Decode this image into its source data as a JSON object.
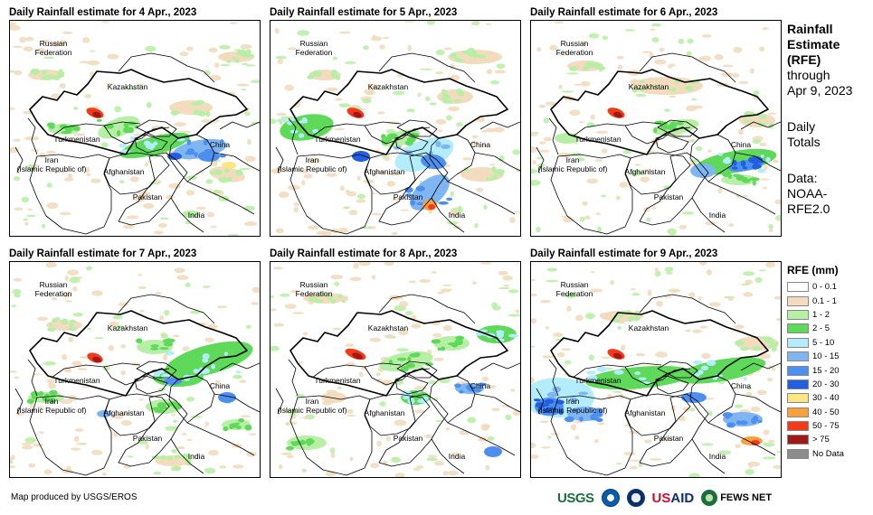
{
  "panels": [
    {
      "title": "Daily Rainfall estimate for 4 Apr., 2023",
      "variant": 0
    },
    {
      "title": "Daily Rainfall estimate for 5 Apr., 2023",
      "variant": 1
    },
    {
      "title": "Daily Rainfall estimate for 6 Apr., 2023",
      "variant": 2
    },
    {
      "title": "Daily Rainfall estimate for 7 Apr., 2023",
      "variant": 3
    },
    {
      "title": "Daily Rainfall estimate for 8 Apr., 2023",
      "variant": 4
    },
    {
      "title": "Daily Rainfall estimate for 9 Apr., 2023",
      "variant": 5
    }
  ],
  "countries": {
    "russia_line1": "Russian",
    "russia_line2": "Federation",
    "kazakhstan": "Kazakhstan",
    "turkmenistan": "Turkmenistan",
    "china": "China",
    "iran_line1": "Iran",
    "iran_line2": "(Islamic Republic of)",
    "afghanistan": "Afghanistan",
    "pakistan": "Pakistan",
    "india": "India"
  },
  "sidebar": {
    "title_line1": "Rainfall",
    "title_line2": "Estimate",
    "title_line3": "(RFE)",
    "through_line1": "through",
    "through_line2": "Apr 9, 2023",
    "totals_line1": "Daily",
    "totals_line2": "Totals",
    "data_line1": "Data:",
    "data_line2": "NOAA-",
    "data_line3": "RFE2.0"
  },
  "legend": {
    "title": "RFE (mm)",
    "items": [
      {
        "label": "0 - 0.1",
        "color": "#ffffff"
      },
      {
        "label": "0.1 - 1",
        "color": "#f2dcbd"
      },
      {
        "label": "1 - 2",
        "color": "#b8efa6"
      },
      {
        "label": "2 - 5",
        "color": "#5fd95a"
      },
      {
        "label": "5 - 10",
        "color": "#b3ecfb"
      },
      {
        "label": "10 - 15",
        "color": "#7fb6f2"
      },
      {
        "label": "15 - 20",
        "color": "#4d8ff0"
      },
      {
        "label": "20 - 30",
        "color": "#1f5fe0"
      },
      {
        "label": "30 - 40",
        "color": "#fde583"
      },
      {
        "label": "40 - 50",
        "color": "#f8a13a"
      },
      {
        "label": "50 - 75",
        "color": "#f23a18"
      },
      {
        "label": "> 75",
        "color": "#a01818"
      },
      {
        "label": "No Data",
        "color": "#8c8c8c"
      }
    ]
  },
  "footer": {
    "credit": "Map produced by USGS/EROS"
  },
  "logos": {
    "usgs": "USGS",
    "usaid_us": "US",
    "usaid_aid": "AID",
    "fews": "FEWS NET"
  }
}
